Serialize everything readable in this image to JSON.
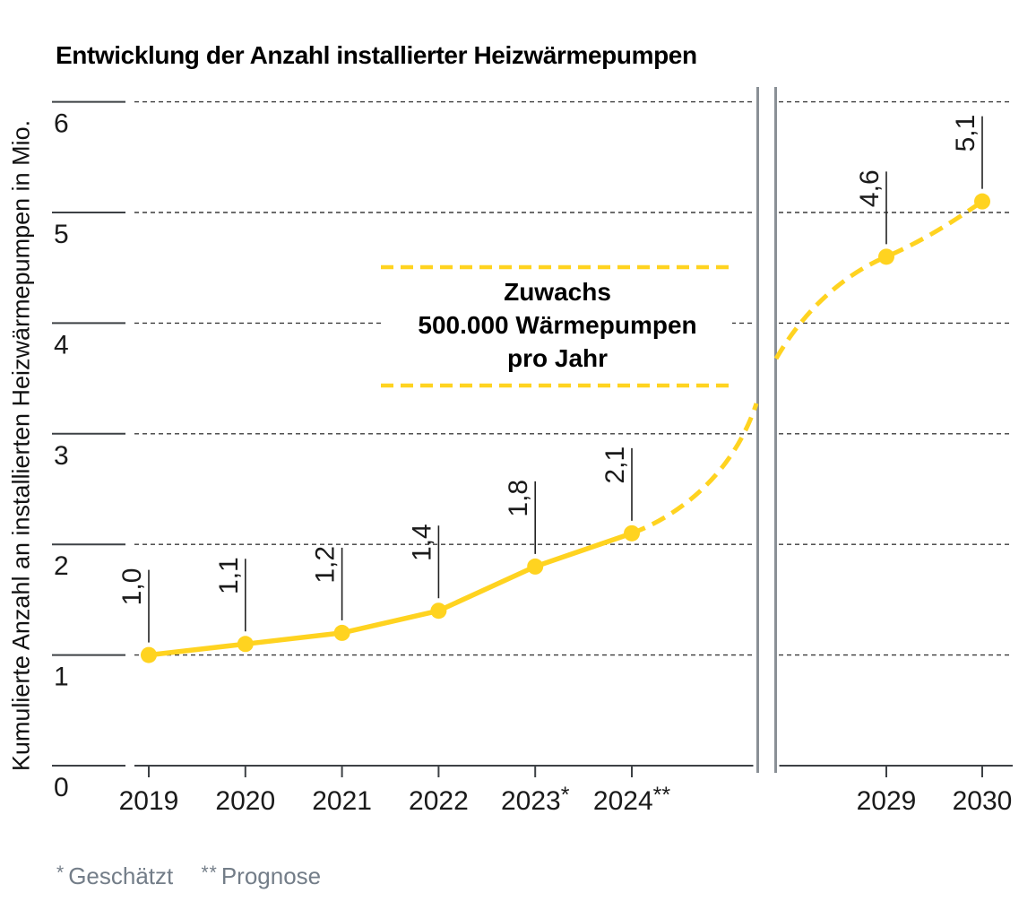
{
  "title": "Entwicklung der Anzahl installierter Heizwärmepumpen",
  "y_axis": {
    "label": "Kumulierte Anzahl an installierten Heizwärmepumpen in Mio.",
    "ticks": [
      0,
      1,
      2,
      3,
      4,
      5,
      6
    ]
  },
  "annotation": {
    "lines": [
      "Zuwachs",
      "500.000 Wärmepumpen",
      "pro Jahr"
    ]
  },
  "footnotes": [
    {
      "marker": "*",
      "text": "Geschätzt"
    },
    {
      "marker": "**",
      "text": "Prognose"
    }
  ],
  "colors": {
    "series_yellow": "#FFD320",
    "grid": "#3C3C3C",
    "axis": "#3D4145",
    "break_gray": "#8A9096",
    "leader": "#222222",
    "tick_text": "#1A1A1A",
    "footnote_gray": "#737D88"
  },
  "chart_data": {
    "type": "line",
    "title": "Entwicklung der Anzahl installierter Heizwärmepumpen",
    "ylabel": "Kumulierte Anzahl an installierten Heizwärmepumpen in Mio.",
    "ylim": [
      0,
      6.2
    ],
    "y_ticks": [
      0,
      1,
      2,
      3,
      4,
      5,
      6
    ],
    "grid": "dotted horizontal",
    "x_axis_break_between": [
      "2024**",
      "2029"
    ],
    "annotation": "Zuwachs 500.000 Wärmepumpen pro Jahr",
    "legend": "none",
    "series_style": {
      "solid_years": [
        2019,
        2024
      ],
      "dashed_years": [
        2024,
        2030
      ]
    },
    "points": [
      {
        "year": 2019,
        "label": "2019",
        "value": 1.0,
        "value_label": "1,0"
      },
      {
        "year": 2020,
        "label": "2020",
        "value": 1.1,
        "value_label": "1,1"
      },
      {
        "year": 2021,
        "label": "2021",
        "value": 1.2,
        "value_label": "1,2"
      },
      {
        "year": 2022,
        "label": "2022",
        "value": 1.4,
        "value_label": "1,4"
      },
      {
        "year": 2023,
        "label": "2023*",
        "value": 1.8,
        "value_label": "1,8"
      },
      {
        "year": 2024,
        "label": "2024**",
        "value": 2.1,
        "value_label": "2,1"
      },
      {
        "year": 2029,
        "label": "2029",
        "value": 4.6,
        "value_label": "4,6"
      },
      {
        "year": 2030,
        "label": "2030",
        "value": 5.1,
        "value_label": "5,1"
      }
    ]
  }
}
